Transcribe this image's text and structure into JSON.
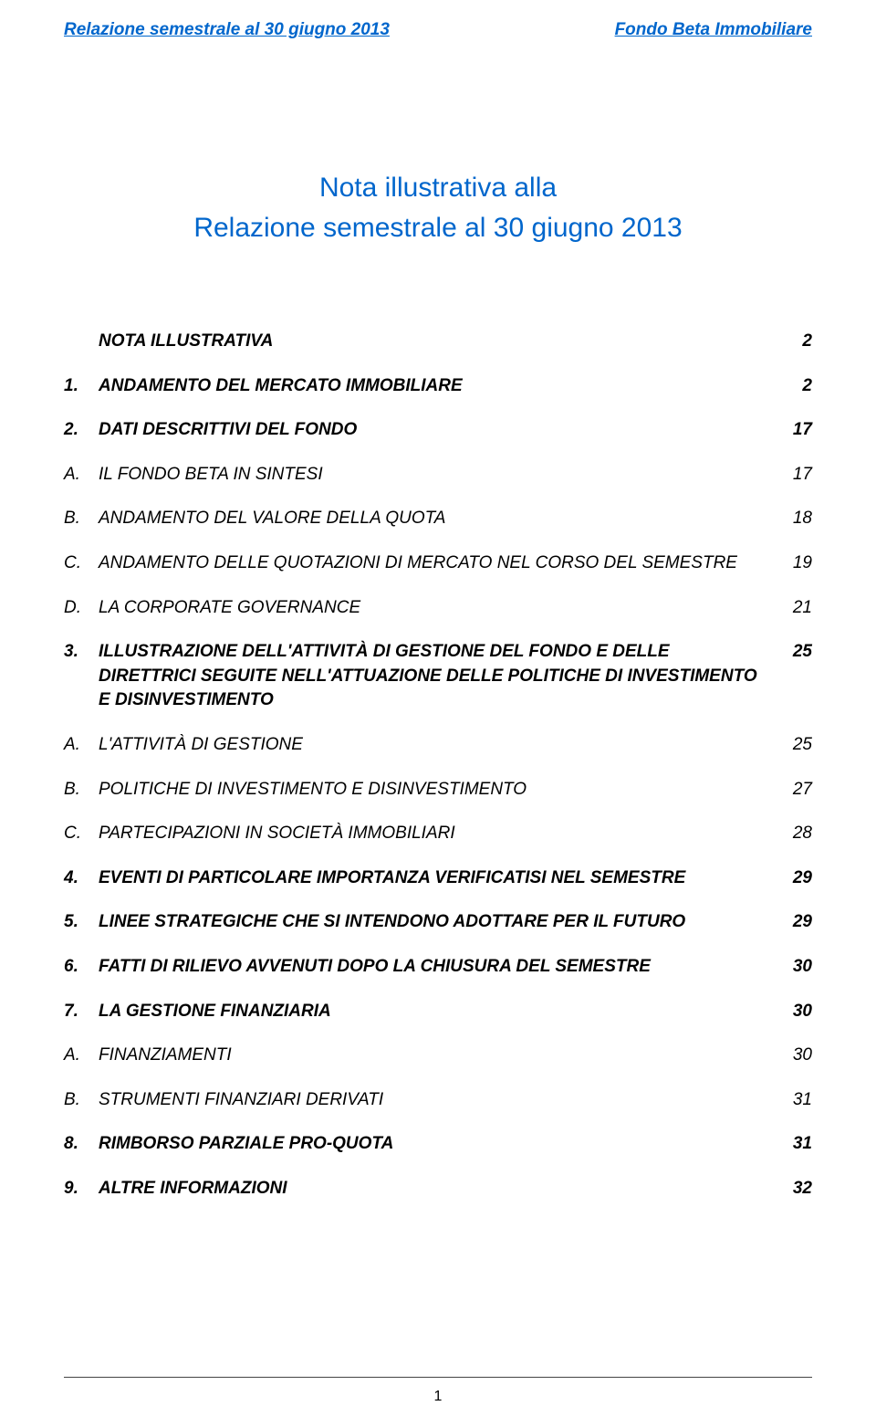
{
  "colors": {
    "link_blue": "#0066cc",
    "text_black": "#000000",
    "background": "#ffffff"
  },
  "typography": {
    "header_fontsize": 19,
    "title_fontsize": 30,
    "toc_fontsize": 19,
    "footer_fontsize": 16,
    "font_family": "Arial",
    "toc_style": "italic"
  },
  "header": {
    "left": "Relazione semestrale al 30 giugno 2013",
    "right": "Fondo Beta Immobiliare"
  },
  "title": {
    "line1": "Nota illustrativa alla",
    "line2": "Relazione semestrale al 30 giugno 2013"
  },
  "toc": [
    {
      "marker": "",
      "label": "NOTA ILLUSTRATIVA",
      "page": "2",
      "bold": true,
      "sub": false
    },
    {
      "marker": "1.",
      "label": "ANDAMENTO DEL MERCATO IMMOBILIARE",
      "page": "2",
      "bold": true,
      "sub": false
    },
    {
      "marker": "2.",
      "label": "DATI DESCRITTIVI DEL FONDO",
      "page": "17",
      "bold": true,
      "sub": false
    },
    {
      "marker": "A.",
      "label": "IL FONDO BETA IN SINTESI",
      "page": "17",
      "bold": false,
      "sub": true
    },
    {
      "marker": "B.",
      "label": "ANDAMENTO DEL VALORE DELLA QUOTA",
      "page": "18",
      "bold": false,
      "sub": true
    },
    {
      "marker": "C.",
      "label": "ANDAMENTO DELLE QUOTAZIONI DI MERCATO NEL CORSO DEL SEMESTRE",
      "page": "19",
      "bold": false,
      "sub": true
    },
    {
      "marker": "D.",
      "label": "LA CORPORATE GOVERNANCE",
      "page": "21",
      "bold": false,
      "sub": true
    },
    {
      "marker": "3.",
      "label": "ILLUSTRAZIONE DELL'ATTIVITÀ DI GESTIONE DEL FONDO E DELLE DIRETTRICI SEGUITE NELL'ATTUAZIONE DELLE POLITICHE DI INVESTIMENTO E DISINVESTIMENTO",
      "page": "25",
      "bold": true,
      "sub": false
    },
    {
      "marker": "A.",
      "label": "L'ATTIVITÀ DI GESTIONE",
      "page": "25",
      "bold": false,
      "sub": true
    },
    {
      "marker": "B.",
      "label": "POLITICHE DI INVESTIMENTO E DISINVESTIMENTO",
      "page": "27",
      "bold": false,
      "sub": true
    },
    {
      "marker": "C.",
      "label": "PARTECIPAZIONI IN SOCIETÀ IMMOBILIARI",
      "page": "28",
      "bold": false,
      "sub": true
    },
    {
      "marker": "4.",
      "label": "EVENTI DI PARTICOLARE IMPORTANZA VERIFICATISI NEL SEMESTRE",
      "page": "29",
      "bold": true,
      "sub": false
    },
    {
      "marker": "5.",
      "label": "LINEE STRATEGICHE CHE SI INTENDONO ADOTTARE PER IL FUTURO",
      "page": "29",
      "bold": true,
      "sub": false
    },
    {
      "marker": "6.",
      "label": "FATTI DI RILIEVO AVVENUTI DOPO LA CHIUSURA DEL SEMESTRE",
      "page": "30",
      "bold": true,
      "sub": false
    },
    {
      "marker": "7.",
      "label": "LA GESTIONE FINANZIARIA",
      "page": "30",
      "bold": true,
      "sub": false
    },
    {
      "marker": "A.",
      "label": "FINANZIAMENTI",
      "page": "30",
      "bold": false,
      "sub": true
    },
    {
      "marker": "B.",
      "label": "STRUMENTI FINANZIARI DERIVATI",
      "page": "31",
      "bold": false,
      "sub": true
    },
    {
      "marker": "8.",
      "label": "RIMBORSO PARZIALE PRO-QUOTA",
      "page": "31",
      "bold": true,
      "sub": false
    },
    {
      "marker": "9.",
      "label": "ALTRE INFORMAZIONI",
      "page": "32",
      "bold": true,
      "sub": false
    }
  ],
  "footer": {
    "page_number": "1"
  }
}
